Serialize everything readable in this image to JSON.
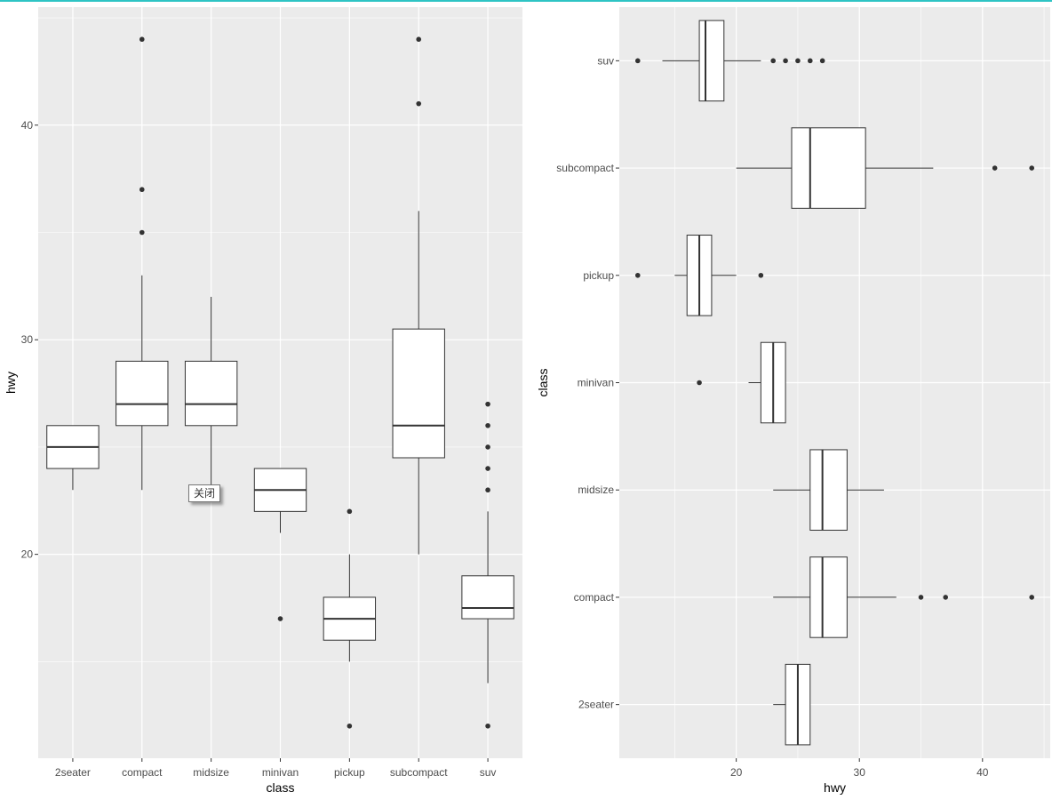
{
  "tooltip": {
    "label": "关闭"
  },
  "chart_data": [
    {
      "type": "boxplot",
      "orientation": "vertical",
      "xlabel": "class",
      "ylabel": "hwy",
      "ylim": [
        10.5,
        45.5
      ],
      "y_ticks": [
        20,
        30,
        40
      ],
      "categories": [
        "2seater",
        "compact",
        "midsize",
        "minivan",
        "pickup",
        "subcompact",
        "suv"
      ],
      "boxes": [
        {
          "category": "2seater",
          "lower_whisker": 23,
          "q1": 24,
          "median": 25,
          "q3": 26,
          "upper_whisker": 26,
          "outliers": []
        },
        {
          "category": "compact",
          "lower_whisker": 23,
          "q1": 26,
          "median": 27,
          "q3": 29,
          "upper_whisker": 33,
          "outliers": [
            35,
            37,
            44
          ]
        },
        {
          "category": "midsize",
          "lower_whisker": 23,
          "q1": 26,
          "median": 27,
          "q3": 29,
          "upper_whisker": 32,
          "outliers": []
        },
        {
          "category": "minivan",
          "lower_whisker": 21,
          "q1": 22,
          "median": 23,
          "q3": 24,
          "upper_whisker": 24,
          "outliers": [
            17
          ]
        },
        {
          "category": "pickup",
          "lower_whisker": 15,
          "q1": 16,
          "median": 17,
          "q3": 18,
          "upper_whisker": 20,
          "outliers": [
            12,
            22
          ]
        },
        {
          "category": "subcompact",
          "lower_whisker": 20,
          "q1": 24.5,
          "median": 26,
          "q3": 30.5,
          "upper_whisker": 36,
          "outliers": [
            41,
            44
          ]
        },
        {
          "category": "suv",
          "lower_whisker": 14,
          "q1": 17,
          "median": 17.5,
          "q3": 19,
          "upper_whisker": 22,
          "outliers": [
            12,
            23,
            24,
            25,
            26,
            27
          ]
        }
      ]
    },
    {
      "type": "boxplot",
      "orientation": "horizontal",
      "xlabel": "hwy",
      "ylabel": "class",
      "xlim": [
        10.5,
        45.5
      ],
      "x_ticks": [
        20,
        30,
        40
      ],
      "categories": [
        "2seater",
        "compact",
        "midsize",
        "minivan",
        "pickup",
        "subcompact",
        "suv"
      ],
      "boxes": [
        {
          "category": "2seater",
          "lower_whisker": 23,
          "q1": 24,
          "median": 25,
          "q3": 26,
          "upper_whisker": 26,
          "outliers": []
        },
        {
          "category": "compact",
          "lower_whisker": 23,
          "q1": 26,
          "median": 27,
          "q3": 29,
          "upper_whisker": 33,
          "outliers": [
            35,
            37,
            44
          ]
        },
        {
          "category": "midsize",
          "lower_whisker": 23,
          "q1": 26,
          "median": 27,
          "q3": 29,
          "upper_whisker": 32,
          "outliers": []
        },
        {
          "category": "minivan",
          "lower_whisker": 21,
          "q1": 22,
          "median": 23,
          "q3": 24,
          "upper_whisker": 24,
          "outliers": [
            17
          ]
        },
        {
          "category": "pickup",
          "lower_whisker": 15,
          "q1": 16,
          "median": 17,
          "q3": 18,
          "upper_whisker": 20,
          "outliers": [
            12,
            22
          ]
        },
        {
          "category": "subcompact",
          "lower_whisker": 20,
          "q1": 24.5,
          "median": 26,
          "q3": 30.5,
          "upper_whisker": 36,
          "outliers": [
            41,
            44
          ]
        },
        {
          "category": "suv",
          "lower_whisker": 14,
          "q1": 17,
          "median": 17.5,
          "q3": 19,
          "upper_whisker": 22,
          "outliers": [
            12,
            23,
            24,
            25,
            26,
            27
          ]
        }
      ]
    }
  ],
  "colors": {
    "panel_background": "#ebebeb",
    "grid_major": "#ffffff",
    "box_fill": "#ffffff",
    "box_stroke": "#333333",
    "outlier": "#333333",
    "tick": "#333333",
    "accent_top_line": "#2ec4c4"
  }
}
